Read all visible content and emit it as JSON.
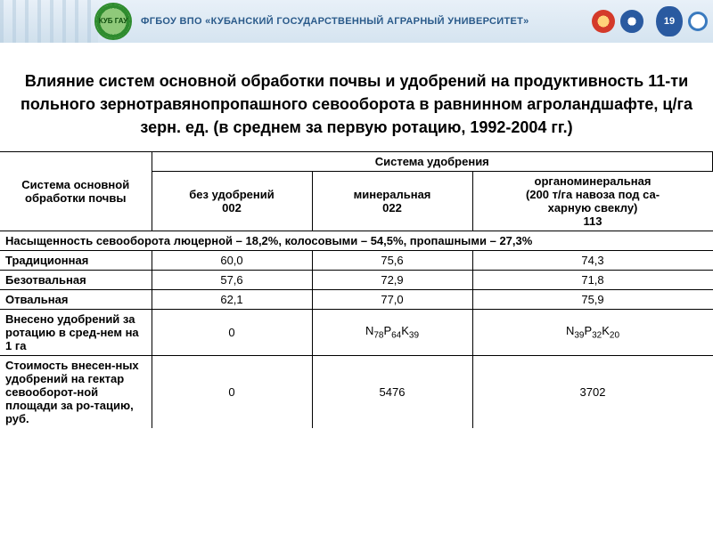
{
  "header": {
    "org_label": "ФГБОУ ВПО «КУБАНСКИЙ ГОСУДАРСТВЕННЫЙ АГРАРНЫЙ УНИВЕРСИТЕТ»",
    "logo_text": "КУБ\nГАУ",
    "page_number": "19",
    "colors": {
      "bar_top": "#e8f0f8",
      "bar_bottom": "#d5e4f0",
      "org_text": "#2a5a8a",
      "logo_outer": "#2e8b2e",
      "logo_inner": "#8fc97a",
      "badge_red": "#d43a2a",
      "badge_blue": "#2a5aa0",
      "pagebox": "#2a5aa0"
    }
  },
  "title": "Влияние систем основной обработки почвы и удобрений на продуктивность 11-ти польного зернотравянопропашного севооборота в равнинном агроландшафте, ц/га зерн. ед. (в среднем за первую ротацию, 1992-2004 гг.)",
  "table": {
    "corner_label": "Система основной обработки почвы",
    "super_header": "Система удобрения",
    "columns": [
      {
        "line1": "без удобрений",
        "line2": "002"
      },
      {
        "line1": "минеральная",
        "line2": "022"
      },
      {
        "line1": "органоминеральная",
        "line2": "(200 т/га навоза под са-",
        "line3": "харную свеклу)",
        "line4": "113"
      }
    ],
    "saturation_row": "Насыщенность севооборота люцерной – 18,2%, колосовыми – 54,5%, пропашными – 27,3%",
    "rows": [
      {
        "label": "Традиционная",
        "v": [
          "60,0",
          "75,6",
          "74,3"
        ]
      },
      {
        "label": "Безотвальная",
        "v": [
          "57,6",
          "72,9",
          "71,8"
        ]
      },
      {
        "label": "Отвальная",
        "v": [
          "62,1",
          "77,0",
          "75,9"
        ]
      }
    ],
    "fert_row": {
      "label": "Внесено удобрений за ротацию в сред-нем на 1 га",
      "v0": "0",
      "v1": {
        "N": "78",
        "P": "64",
        "K": "39"
      },
      "v2": {
        "N": "39",
        "P": "32",
        "K": "20"
      }
    },
    "cost_row": {
      "label": "Стоимость внесен-ных удобрений на гектар севооборот-ной площади за ро-тацию, руб.",
      "v": [
        "0",
        "5476",
        "3702"
      ]
    },
    "style": {
      "border_color": "#000000",
      "font_size_body": 13,
      "font_size_title": 18,
      "background": "#ffffff",
      "col0_width": 170,
      "colv_width": 180
    }
  }
}
